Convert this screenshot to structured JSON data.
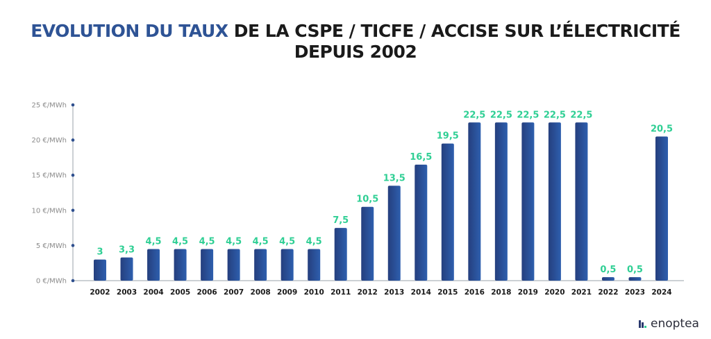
{
  "title_highlight": "EVOLUTION DU TAUX",
  "title_line1_rest": " DE LA CSPE / TICFE / ACCISE SUR L’ÉLECTRICITÉ",
  "title_line2": "DEPUIS 2002",
  "logo_text": "enoptea",
  "chart_data": {
    "type": "bar",
    "categories": [
      "2002",
      "2003",
      "2004",
      "2005",
      "2006",
      "2007",
      "2008",
      "2009",
      "2010",
      "2011",
      "2012",
      "2013",
      "2014",
      "2015",
      "2016",
      "2018",
      "2019",
      "2020",
      "2021",
      "2022",
      "2023",
      "2024"
    ],
    "values": [
      3,
      3.3,
      4.5,
      4.5,
      4.5,
      4.5,
      4.5,
      4.5,
      4.5,
      7.5,
      10.5,
      13.5,
      16.5,
      19.5,
      22.5,
      22.5,
      22.5,
      22.5,
      22.5,
      0.5,
      0.5,
      20.5
    ],
    "data_labels": [
      "3",
      "3,3",
      "4,5",
      "4,5",
      "4,5",
      "4,5",
      "4,5",
      "4,5",
      "4,5",
      "7,5",
      "10,5",
      "13,5",
      "16,5",
      "19,5",
      "22,5",
      "22,5",
      "22,5",
      "22,5",
      "22,5",
      "0,5",
      "0,5",
      "20,5"
    ],
    "y_ticks": [
      0,
      5,
      10,
      15,
      20,
      25
    ],
    "y_tick_labels": [
      "0 €/MWh",
      "5 €/MWh",
      "10 €/MWh",
      "15 €/MWh",
      "20 €/MWh",
      "25 €/MWh"
    ],
    "ylim": [
      0,
      25
    ],
    "grid": false,
    "colors": {
      "bar_start": "#253f7e",
      "bar_end": "#2e5fae",
      "label": "#2fcf94",
      "axis": "#9aa0aa",
      "title_highlight": "#2e5395"
    }
  }
}
